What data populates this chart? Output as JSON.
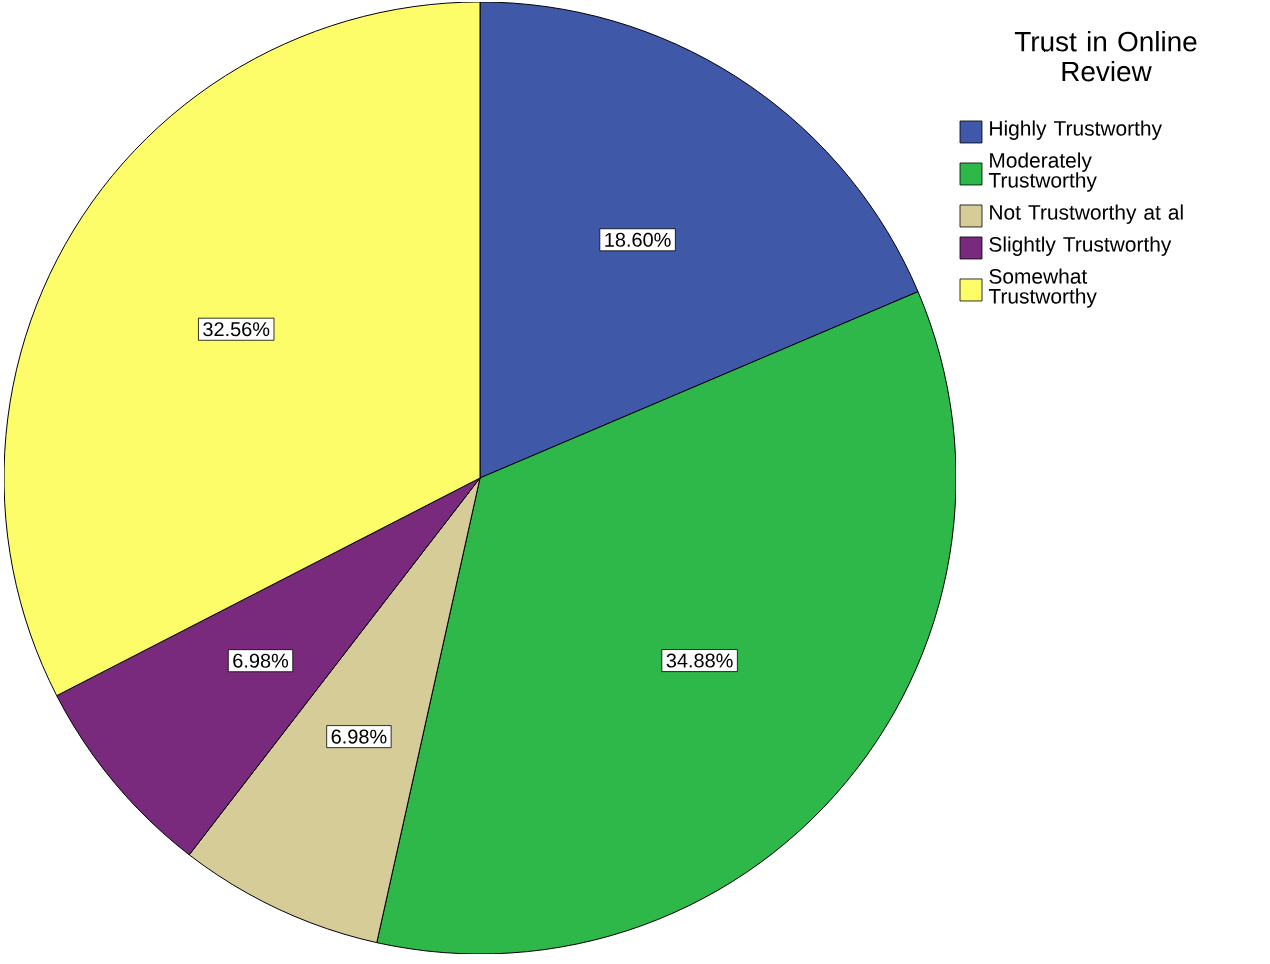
{
  "chart_data": {
    "type": "pie",
    "legend_title": "Trust in Online Review",
    "legend": "top right",
    "value_labels": [
      "18.60%",
      "34.88%",
      "6.98%",
      "6.98%",
      "32.56%"
    ],
    "categories": [
      "Highly Trustworthy",
      "Moderately Trustworthy",
      "Not Trustworthy at al",
      "Slightly Trustworthy",
      "Somewhat Trustworthy"
    ],
    "values": [
      18.6,
      34.88,
      6.98,
      6.98,
      32.56
    ],
    "colors": [
      "#3f58a8",
      "#2eb84a",
      "#d6cc98",
      "#7a2a7c",
      "#fdfd6a"
    ]
  }
}
